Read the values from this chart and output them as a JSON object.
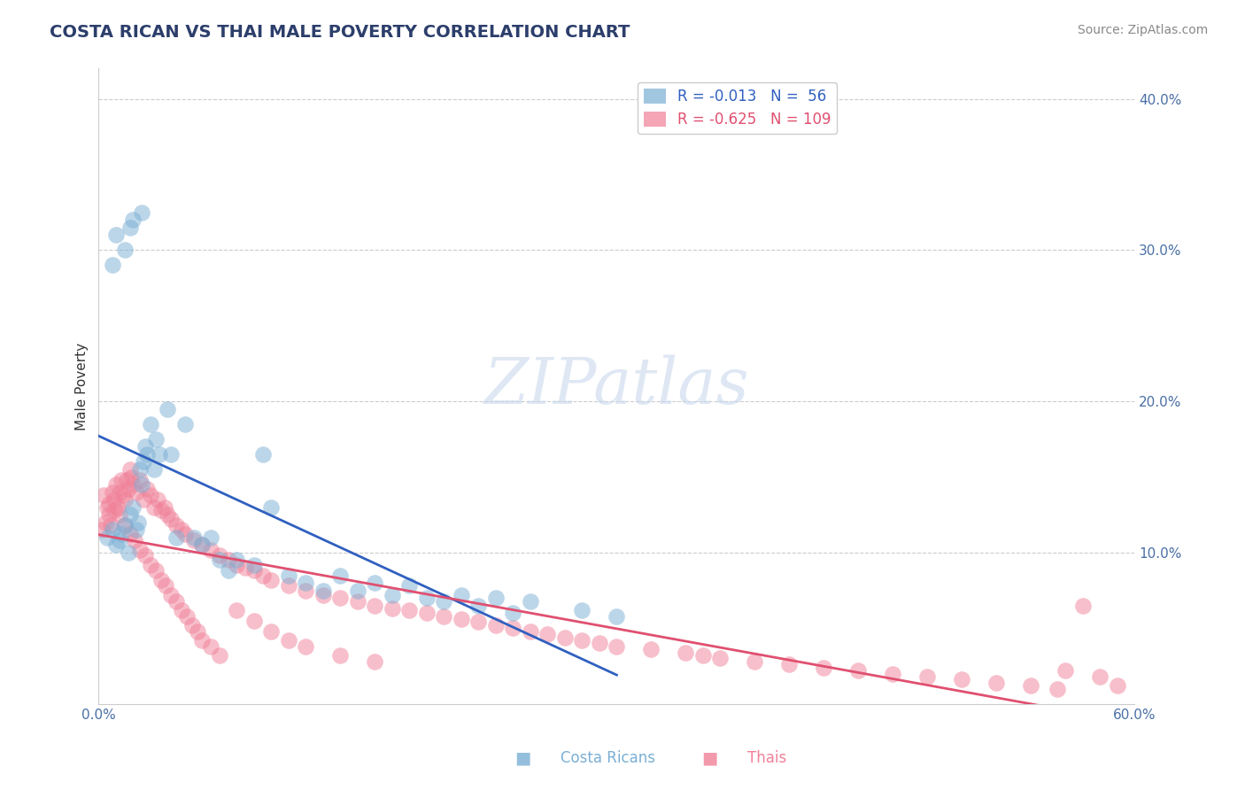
{
  "title": "COSTA RICAN VS THAI MALE POVERTY CORRELATION CHART",
  "source": "Source: ZipAtlas.com",
  "xlabel": "",
  "ylabel": "Male Poverty",
  "xlim": [
    0.0,
    0.6
  ],
  "ylim": [
    0.0,
    0.42
  ],
  "ytick_vals": [
    0.1,
    0.2,
    0.3,
    0.4
  ],
  "ytick_labels": [
    "10.0%",
    "20.0%",
    "30.0%",
    "40.0%"
  ],
  "xtick_vals": [
    0.0,
    0.6
  ],
  "xtick_labels": [
    "0.0%",
    "60.0%"
  ],
  "legend_entry_0": "R = -0.013   N =  56",
  "legend_entry_1": "R = -0.625   N = 109",
  "legend_labels_bottom": [
    "Costa Ricans",
    "Thais"
  ],
  "title_color": "#2c3e6b",
  "source_color": "#888888",
  "axis_color": "#cccccc",
  "grid_color": "#cccccc",
  "tick_color": "#4a6fa5",
  "watermark_text": "ZIPatlas",
  "cr_color": "#7aafd4",
  "thai_color": "#f08098",
  "cr_line_color": "#3060c0",
  "thai_line_color": "#e05070",
  "cr_scatter_x": [
    0.005,
    0.008,
    0.01,
    0.012,
    0.013,
    0.015,
    0.017,
    0.018,
    0.02,
    0.022,
    0.023,
    0.024,
    0.025,
    0.026,
    0.027,
    0.028,
    0.03,
    0.032,
    0.033,
    0.035,
    0.04,
    0.042,
    0.045,
    0.05,
    0.055,
    0.06,
    0.065,
    0.07,
    0.075,
    0.08,
    0.09,
    0.095,
    0.1,
    0.11,
    0.12,
    0.13,
    0.14,
    0.15,
    0.16,
    0.17,
    0.18,
    0.19,
    0.2,
    0.21,
    0.22,
    0.23,
    0.24,
    0.25,
    0.28,
    0.3,
    0.008,
    0.01,
    0.015,
    0.018,
    0.02,
    0.025
  ],
  "cr_scatter_y": [
    0.11,
    0.115,
    0.105,
    0.108,
    0.112,
    0.118,
    0.1,
    0.125,
    0.13,
    0.115,
    0.12,
    0.155,
    0.145,
    0.16,
    0.17,
    0.165,
    0.185,
    0.155,
    0.175,
    0.165,
    0.195,
    0.165,
    0.11,
    0.185,
    0.11,
    0.105,
    0.11,
    0.095,
    0.088,
    0.095,
    0.092,
    0.165,
    0.13,
    0.085,
    0.08,
    0.075,
    0.085,
    0.075,
    0.08,
    0.072,
    0.078,
    0.07,
    0.068,
    0.072,
    0.065,
    0.07,
    0.06,
    0.068,
    0.062,
    0.058,
    0.29,
    0.31,
    0.3,
    0.315,
    0.32,
    0.325
  ],
  "thai_scatter_x": [
    0.002,
    0.004,
    0.005,
    0.006,
    0.007,
    0.008,
    0.009,
    0.01,
    0.011,
    0.012,
    0.013,
    0.014,
    0.015,
    0.016,
    0.017,
    0.018,
    0.019,
    0.02,
    0.022,
    0.024,
    0.026,
    0.028,
    0.03,
    0.032,
    0.034,
    0.036,
    0.038,
    0.04,
    0.042,
    0.045,
    0.048,
    0.05,
    0.055,
    0.06,
    0.065,
    0.07,
    0.075,
    0.08,
    0.085,
    0.09,
    0.095,
    0.1,
    0.11,
    0.12,
    0.13,
    0.14,
    0.15,
    0.16,
    0.17,
    0.18,
    0.19,
    0.2,
    0.21,
    0.22,
    0.23,
    0.24,
    0.25,
    0.26,
    0.27,
    0.28,
    0.29,
    0.3,
    0.32,
    0.34,
    0.35,
    0.36,
    0.38,
    0.4,
    0.42,
    0.44,
    0.46,
    0.48,
    0.5,
    0.52,
    0.54,
    0.555,
    0.56,
    0.57,
    0.58,
    0.59,
    0.003,
    0.006,
    0.009,
    0.012,
    0.015,
    0.018,
    0.021,
    0.024,
    0.027,
    0.03,
    0.033,
    0.036,
    0.039,
    0.042,
    0.045,
    0.048,
    0.051,
    0.054,
    0.057,
    0.06,
    0.065,
    0.07,
    0.08,
    0.09,
    0.1,
    0.11,
    0.12,
    0.14,
    0.16
  ],
  "thai_scatter_y": [
    0.115,
    0.12,
    0.13,
    0.125,
    0.118,
    0.14,
    0.135,
    0.145,
    0.13,
    0.14,
    0.148,
    0.138,
    0.135,
    0.148,
    0.142,
    0.155,
    0.15,
    0.145,
    0.14,
    0.148,
    0.135,
    0.142,
    0.138,
    0.13,
    0.135,
    0.128,
    0.13,
    0.125,
    0.122,
    0.118,
    0.115,
    0.112,
    0.108,
    0.105,
    0.102,
    0.098,
    0.095,
    0.092,
    0.09,
    0.088,
    0.085,
    0.082,
    0.078,
    0.075,
    0.072,
    0.07,
    0.068,
    0.065,
    0.063,
    0.062,
    0.06,
    0.058,
    0.056,
    0.054,
    0.052,
    0.05,
    0.048,
    0.046,
    0.044,
    0.042,
    0.04,
    0.038,
    0.036,
    0.034,
    0.032,
    0.03,
    0.028,
    0.026,
    0.024,
    0.022,
    0.02,
    0.018,
    0.016,
    0.014,
    0.012,
    0.01,
    0.022,
    0.065,
    0.018,
    0.012,
    0.138,
    0.132,
    0.128,
    0.125,
    0.118,
    0.112,
    0.108,
    0.102,
    0.098,
    0.092,
    0.088,
    0.082,
    0.078,
    0.072,
    0.068,
    0.062,
    0.058,
    0.052,
    0.048,
    0.042,
    0.038,
    0.032,
    0.062,
    0.055,
    0.048,
    0.042,
    0.038,
    0.032,
    0.028
  ]
}
